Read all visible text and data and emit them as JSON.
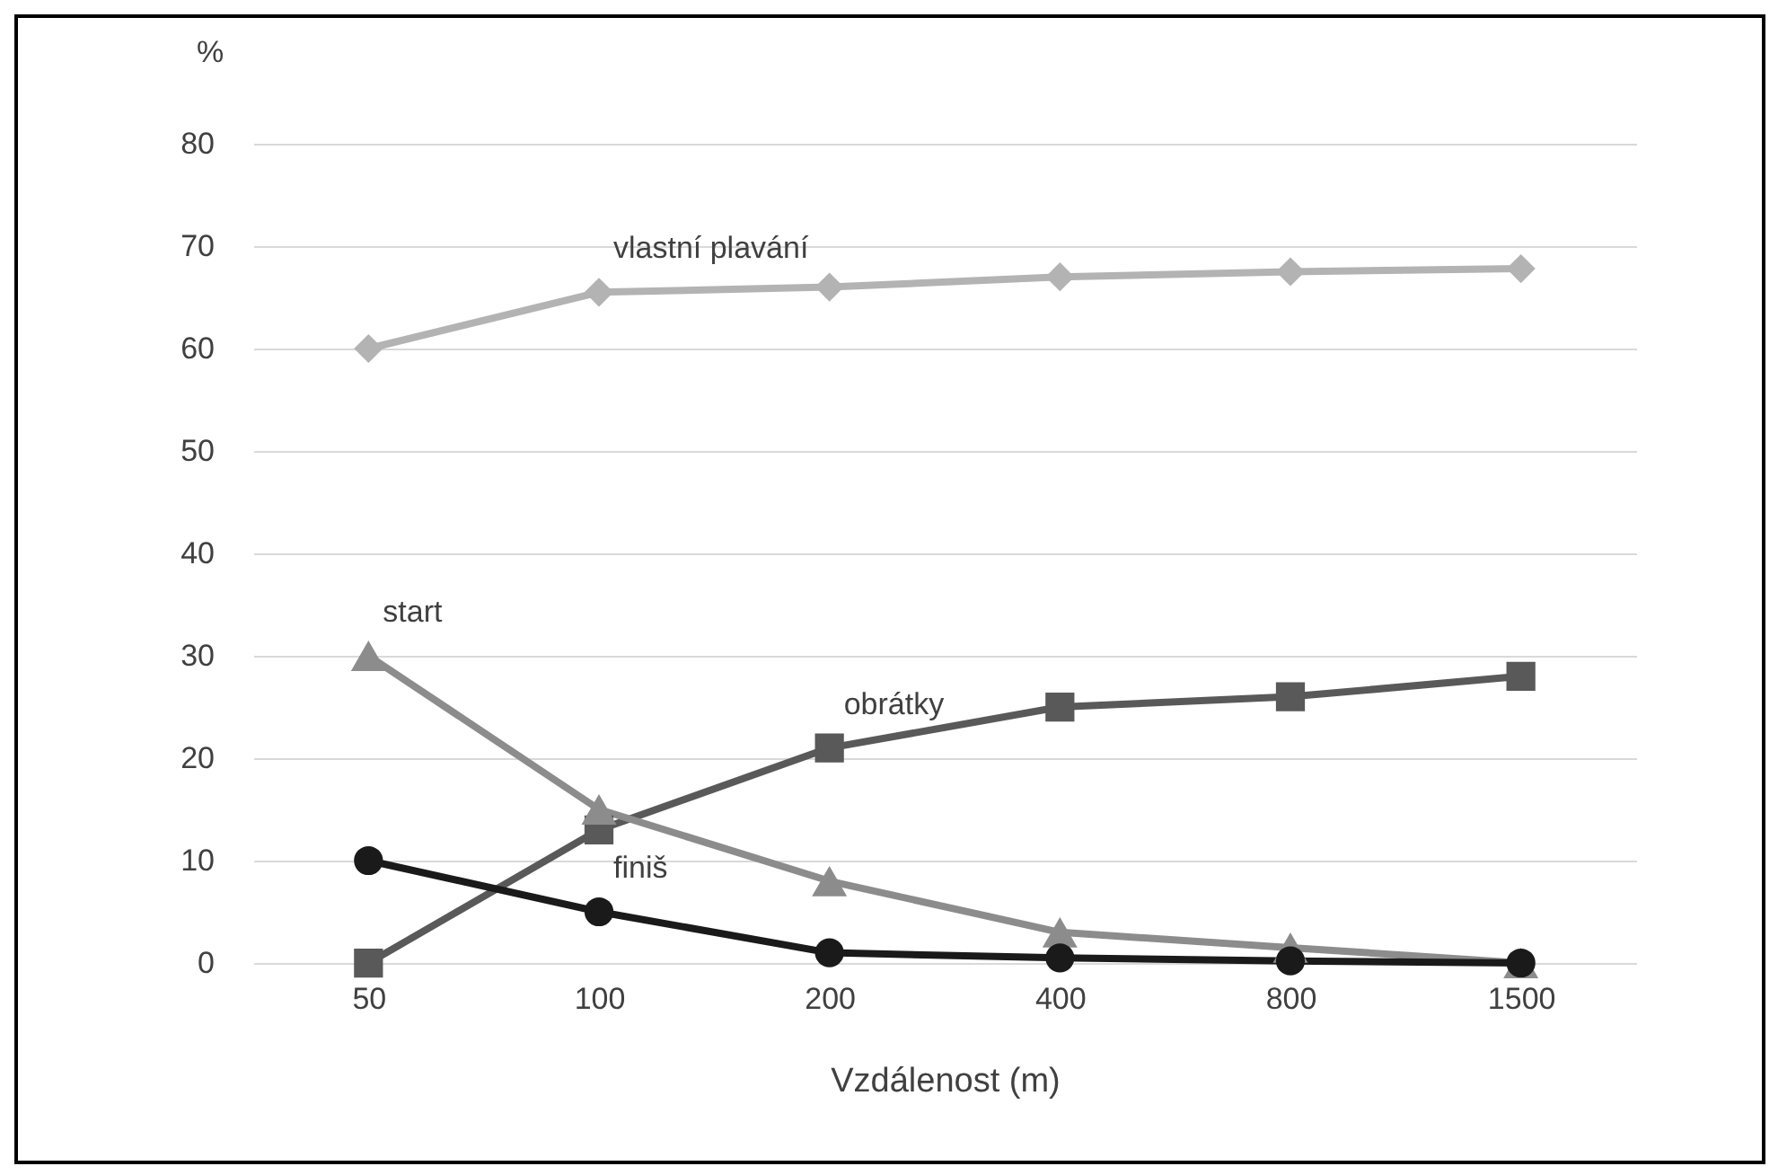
{
  "chart_data": {
    "type": "line",
    "xlabel": "Vzdálenost (m)",
    "ylabel": "%",
    "categories": [
      "50",
      "100",
      "200",
      "400",
      "800",
      "1500"
    ],
    "series": [
      {
        "color": "#b3b3b3",
        "marker": "diamond",
        "values": [
          60,
          65.5,
          66,
          67,
          67.5,
          67.8
        ]
      },
      {
        "color": "#595959",
        "marker": "square",
        "values": [
          0,
          13,
          21,
          25,
          26,
          28
        ]
      },
      {
        "color": "#8c8c8c",
        "marker": "triangle",
        "values": [
          30,
          15,
          8,
          3,
          1.5,
          0
        ]
      },
      {
        "color": "#1a1a1a",
        "marker": "circle",
        "values": [
          10,
          5,
          1,
          0.5,
          0.2,
          0
        ]
      }
    ],
    "annotations": [
      {
        "text": "vlastní plavání",
        "x": "100",
        "y": 65.5
      },
      {
        "text": "start",
        "x": "50",
        "y": 30
      },
      {
        "text": "obrátky",
        "x": "200",
        "y": 21
      },
      {
        "text": "finiš",
        "x": "100",
        "y": 5
      }
    ],
    "ylim": [
      0,
      80
    ],
    "yticks": [
      0,
      10,
      20,
      30,
      40,
      50,
      60,
      70,
      80
    ],
    "grid": "y",
    "legend": false,
    "line_style": "solid"
  }
}
